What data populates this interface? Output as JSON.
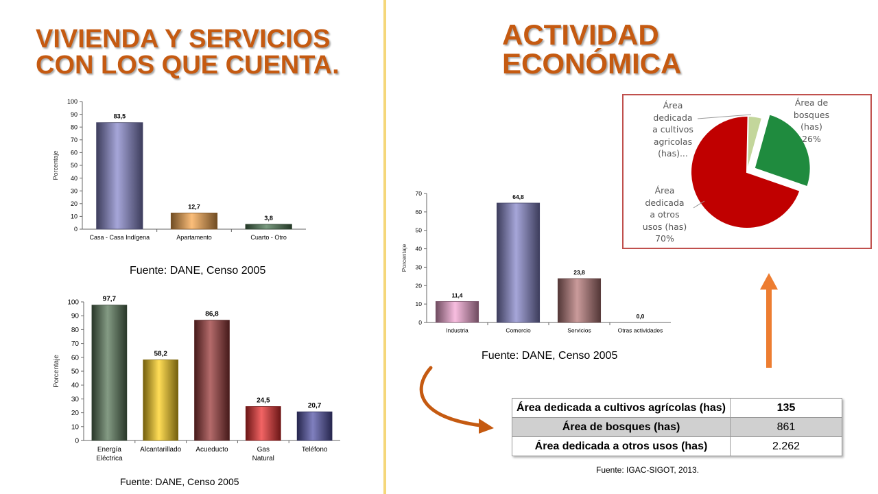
{
  "left_title": [
    "VIVIENDA Y SERVICIOS",
    "CON LOS QUE CUENTA."
  ],
  "right_title": [
    "ACTIVIDAD",
    "ECONÓMICA"
  ],
  "sources": {
    "vivienda": "Fuente: DANE, Censo 2005",
    "servicios": "Fuente: DANE, Censo 2005",
    "actividad": "Fuente: DANE, Censo 2005",
    "area": "Fuente: IGAC-SIGOT, 2013."
  },
  "colors": {
    "title": "#c55a11",
    "divider": "#f5d77a",
    "arrow": "#ed7d31",
    "curved_arrow": "#c55a11"
  },
  "chart_data": [
    {
      "id": "vivienda",
      "type": "bar",
      "ylabel": "Porcentaje",
      "ylim": [
        0,
        100
      ],
      "yticks": [
        0,
        10,
        20,
        30,
        40,
        50,
        60,
        70,
        80,
        90,
        100
      ],
      "grid": false,
      "categories": [
        "Casa - Casa Indígena",
        "Apartamento",
        "Cuarto - Otro"
      ],
      "values": [
        83.5,
        12.7,
        3.8
      ],
      "value_labels": [
        "83,5",
        "12,7",
        "3,8"
      ],
      "colors": [
        "#8888cc",
        "#f9a84d",
        "#4d7a55"
      ]
    },
    {
      "id": "servicios",
      "type": "bar",
      "ylabel": "Porcentaje",
      "ylim": [
        0,
        100
      ],
      "yticks": [
        0,
        10,
        20,
        30,
        40,
        50,
        60,
        70,
        80,
        90,
        100
      ],
      "grid": false,
      "categories": [
        "Energía Eléctrica",
        "Alcantarillado",
        "Acueducto",
        "Gas Natural",
        "Teléfono"
      ],
      "values": [
        97.7,
        58.2,
        86.8,
        24.5,
        20.7
      ],
      "value_labels": [
        "97,7",
        "58,2",
        "86,8",
        "24,5",
        "20,7"
      ],
      "colors": [
        "#5b7a5b",
        "#ffd21f",
        "#9b3a3a",
        "#ee3030",
        "#5555aa"
      ]
    },
    {
      "id": "actividad",
      "type": "bar",
      "ylabel": "Porcentaje",
      "ylim": [
        0,
        70
      ],
      "yticks": [
        0,
        10,
        20,
        30,
        40,
        50,
        60,
        70
      ],
      "grid": false,
      "categories": [
        "Industria",
        "Comercio",
        "Servicios",
        "Otras actividades"
      ],
      "values": [
        11.4,
        64.8,
        23.8,
        0.0
      ],
      "value_labels": [
        "11,4",
        "64,8",
        "23,8",
        "0,0"
      ],
      "colors": [
        "#f6a8d6",
        "#8888cc",
        "#b87a7a",
        "#999999"
      ]
    },
    {
      "id": "area",
      "type": "pie",
      "slices": [
        {
          "label": "Área dedicada a cultivos agricolas (has)...",
          "value": 4,
          "color": "#c3d69b"
        },
        {
          "label": "Área de bosques (has) 26%",
          "value": 26,
          "color": "#1f8b3e"
        },
        {
          "label": "Área dedicada a otros usos (has) 70%",
          "value": 70,
          "color": "#c00000"
        }
      ]
    }
  ],
  "pie_labels": {
    "cultivos": [
      "Área",
      "dedicada",
      "a cultivos",
      "agricolas",
      "(has)..."
    ],
    "bosques": [
      "Área de",
      "bosques",
      "(has)",
      "26%"
    ],
    "otros": [
      "Área",
      "dedicada",
      "a otros",
      "usos (has)",
      "70%"
    ]
  },
  "area_table": [
    {
      "label": "Área dedicada a cultivos agrícolas (has)",
      "value": "135"
    },
    {
      "label": "Área de bosques (has)",
      "value": "861"
    },
    {
      "label": "Área dedicada a otros usos (has)",
      "value": "2.262"
    }
  ]
}
